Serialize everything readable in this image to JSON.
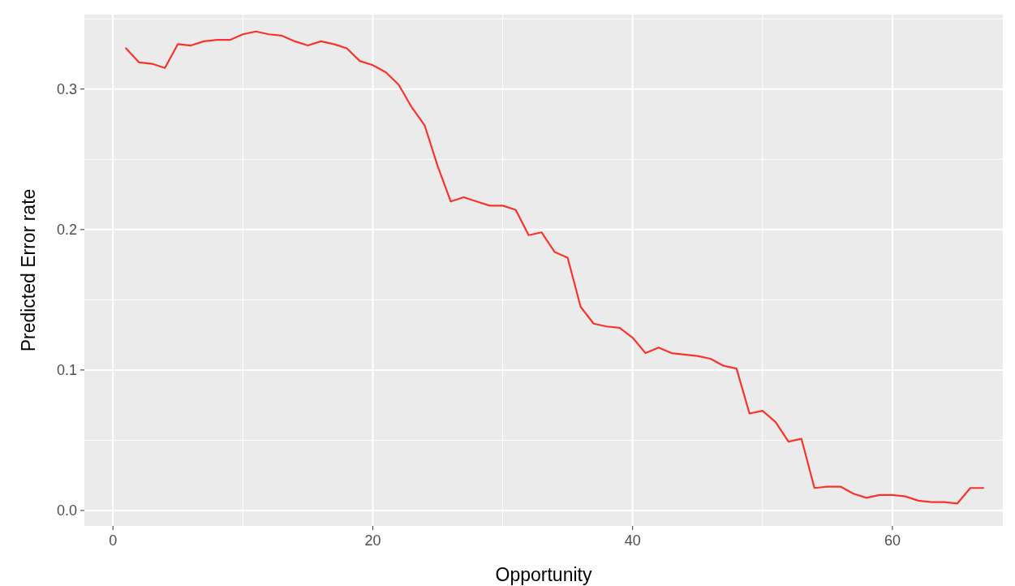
{
  "chart_data": {
    "type": "line",
    "xlabel": "Opportunity",
    "ylabel": "Predicted Error rate",
    "x": [
      1,
      2,
      3,
      4,
      5,
      6,
      7,
      8,
      9,
      10,
      11,
      12,
      13,
      14,
      15,
      16,
      17,
      18,
      19,
      20,
      21,
      22,
      23,
      24,
      25,
      26,
      27,
      28,
      29,
      30,
      31,
      32,
      33,
      34,
      35,
      36,
      37,
      38,
      39,
      40,
      41,
      42,
      43,
      44,
      45,
      46,
      47,
      48,
      49,
      50,
      51,
      52,
      53,
      54,
      55,
      56,
      57,
      58,
      59,
      60,
      61,
      62,
      63,
      64,
      65,
      66,
      67
    ],
    "series": [
      {
        "color": "#f8342a",
        "values": [
          0.329,
          0.319,
          0.318,
          0.315,
          0.332,
          0.331,
          0.334,
          0.335,
          0.335,
          0.339,
          0.341,
          0.339,
          0.338,
          0.334,
          0.331,
          0.334,
          0.332,
          0.329,
          0.32,
          0.317,
          0.312,
          0.303,
          0.287,
          0.274,
          0.245,
          0.22,
          0.223,
          0.22,
          0.217,
          0.217,
          0.214,
          0.196,
          0.198,
          0.184,
          0.18,
          0.145,
          0.133,
          0.131,
          0.13,
          0.123,
          0.112,
          0.116,
          0.112,
          0.111,
          0.11,
          0.108,
          0.103,
          0.101,
          0.069,
          0.071,
          0.063,
          0.049,
          0.051,
          0.016,
          0.017,
          0.017,
          0.012,
          0.009,
          0.011,
          0.011,
          0.01,
          0.007,
          0.006,
          0.006,
          0.005,
          0.016,
          0.016
        ]
      }
    ],
    "xlim": [
      -2.2,
      68.5
    ],
    "ylim": [
      -0.011,
      0.353
    ],
    "xticks": [
      0,
      20,
      40,
      60
    ],
    "yticks": [
      {
        "value": 0,
        "label": "0.0"
      },
      {
        "value": 0.1,
        "label": "0.1"
      },
      {
        "value": 0.2,
        "label": "0.2"
      },
      {
        "value": 0.3,
        "label": "0.3"
      }
    ],
    "grid": true,
    "line_style": "solid",
    "marker": "none"
  }
}
